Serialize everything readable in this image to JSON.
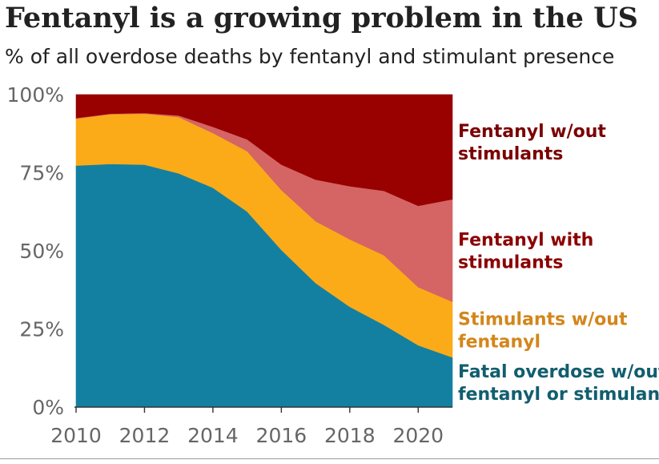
{
  "chart_data": {
    "type": "area",
    "stacked": true,
    "title": "Fentanyl is a growing problem in the US",
    "subtitle": "% of all overdose deaths by fentanyl and stimulant presence",
    "xlabel": "",
    "ylabel": "",
    "x": [
      2010,
      2011,
      2012,
      2013,
      2014,
      2015,
      2016,
      2017,
      2018,
      2019,
      2020,
      2021
    ],
    "xlim": [
      2010,
      2021
    ],
    "ylim": [
      0,
      100
    ],
    "x_ticks": [
      {
        "value": 2010,
        "label": "2010"
      },
      {
        "value": 2012,
        "label": "2012"
      },
      {
        "value": 2014,
        "label": "2014"
      },
      {
        "value": 2016,
        "label": "2016"
      },
      {
        "value": 2018,
        "label": "2018"
      },
      {
        "value": 2020,
        "label": "2020"
      }
    ],
    "y_ticks": [
      {
        "value": 0,
        "label": "0%"
      },
      {
        "value": 25,
        "label": "25%"
      },
      {
        "value": 50,
        "label": "50%"
      },
      {
        "value": 75,
        "label": "75%"
      },
      {
        "value": 100,
        "label": "100%"
      }
    ],
    "series": [
      {
        "name": "Fatal overdose w/out fentanyl or stimulants",
        "label_lines": [
          "Fatal overdose w/out",
          "fentanyl or stimulants"
        ],
        "color": "#1380a1",
        "label_color": "#115e6e",
        "values": [
          77.3,
          77.8,
          77.6,
          74.8,
          70.2,
          62.6,
          50.3,
          39.7,
          32.1,
          26.3,
          19.8,
          15.9
        ]
      },
      {
        "name": "Stimulants w/out fentanyl",
        "label_lines": [
          "Stimulants w/out",
          "fentanyl"
        ],
        "color": "#fbab18",
        "label_color": "#d3861a",
        "values": [
          15.0,
          15.9,
          16.3,
          18.0,
          17.5,
          19.3,
          19.2,
          19.8,
          21.6,
          22.3,
          18.6,
          17.8
        ]
      },
      {
        "name": "Fentanyl with stimulants",
        "label_lines": [
          "Fentanyl with",
          "stimulants"
        ],
        "color": "#d46564",
        "label_color": "#8b0000",
        "values": [
          0.2,
          0.2,
          0.2,
          0.5,
          2.0,
          3.8,
          8.1,
          13.3,
          17.0,
          20.6,
          26.0,
          32.8
        ]
      },
      {
        "name": "Fentanyl w/out stimulants",
        "label_lines": [
          "Fentanyl w/out",
          "stimulants"
        ],
        "color": "#990000",
        "label_color": "#7b0000",
        "values": [
          7.5,
          6.1,
          5.9,
          6.7,
          10.3,
          14.3,
          22.4,
          27.2,
          29.3,
          30.8,
          35.6,
          33.5
        ]
      }
    ],
    "legend": "direct labels at right edge"
  }
}
